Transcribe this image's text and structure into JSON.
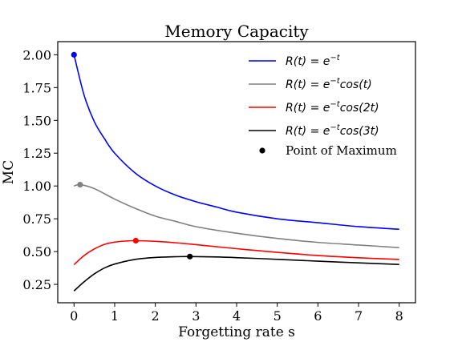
{
  "chart_data": {
    "type": "line",
    "title": "Memory Capacity",
    "xlabel": "Forgetting rate s",
    "ylabel": "MC",
    "xlim": [
      -0.4,
      8.4
    ],
    "ylim": [
      0.11,
      2.1
    ],
    "x_ticks": [
      0,
      1,
      2,
      3,
      4,
      5,
      6,
      7,
      8
    ],
    "x_tick_labels": [
      "0",
      "1",
      "2",
      "3",
      "4",
      "5",
      "6",
      "7",
      "8"
    ],
    "y_ticks": [
      0.25,
      0.5,
      0.75,
      1.0,
      1.25,
      1.5,
      1.75,
      2.0
    ],
    "y_tick_labels": [
      "0.25",
      "0.50",
      "0.75",
      "1.00",
      "1.25",
      "1.50",
      "1.75",
      "2.00"
    ],
    "grid": false,
    "legend_position": "top-right",
    "series": [
      {
        "name": "R(t) = e^{-t}",
        "legend_main": "R(t) = e",
        "legend_sup": "−t",
        "legend_rest": "",
        "color": "#0000ff",
        "x": [
          0,
          0.25,
          0.5,
          0.75,
          1,
          1.5,
          2,
          2.5,
          3,
          3.5,
          4,
          5,
          6,
          7,
          8
        ],
        "y": [
          2.0,
          1.69,
          1.49,
          1.36,
          1.25,
          1.1,
          1.0,
          0.93,
          0.88,
          0.84,
          0.8,
          0.75,
          0.72,
          0.69,
          0.67
        ]
      },
      {
        "name": "R(t) = e^{-t}cos(t)",
        "legend_main": "R(t) = e",
        "legend_sup": "−t",
        "legend_rest": "cos(t)",
        "color": "#808080",
        "x": [
          0,
          0.15,
          0.5,
          1,
          1.5,
          2,
          2.5,
          3,
          4,
          5,
          6,
          7,
          8
        ],
        "y": [
          1.0,
          1.01,
          0.98,
          0.9,
          0.83,
          0.77,
          0.73,
          0.69,
          0.64,
          0.6,
          0.57,
          0.55,
          0.53
        ]
      },
      {
        "name": "R(t) = e^{-t}cos(2t)",
        "legend_main": "R(t) = e",
        "legend_sup": "−t",
        "legend_rest": "cos(2t)",
        "color": "#ff0000",
        "x": [
          0,
          0.25,
          0.5,
          0.75,
          1,
          1.25,
          1.5,
          2,
          2.5,
          3,
          4,
          5,
          6,
          7,
          8
        ],
        "y": [
          0.4,
          0.47,
          0.52,
          0.555,
          0.572,
          0.58,
          0.583,
          0.578,
          0.567,
          0.553,
          0.522,
          0.494,
          0.47,
          0.453,
          0.44
        ]
      },
      {
        "name": "R(t) = e^{-t}cos(3t)",
        "legend_main": "R(t) = e",
        "legend_sup": "−t",
        "legend_rest": "cos(3t)",
        "color": "#000000",
        "x": [
          0,
          0.25,
          0.5,
          0.75,
          1,
          1.5,
          2,
          2.5,
          2.85,
          3.5,
          4,
          5,
          6,
          7,
          8
        ],
        "y": [
          0.2,
          0.27,
          0.33,
          0.375,
          0.405,
          0.44,
          0.455,
          0.461,
          0.462,
          0.459,
          0.454,
          0.441,
          0.427,
          0.414,
          0.402
        ]
      }
    ],
    "maxima": {
      "name": "Point of Maximum",
      "color": "#000000",
      "points": [
        {
          "x": 0.0,
          "y": 2.0,
          "color": "#0000ff"
        },
        {
          "x": 0.15,
          "y": 1.01,
          "color": "#808080"
        },
        {
          "x": 1.52,
          "y": 0.583,
          "color": "#ff0000"
        },
        {
          "x": 2.85,
          "y": 0.462,
          "color": "#000000"
        }
      ]
    }
  }
}
